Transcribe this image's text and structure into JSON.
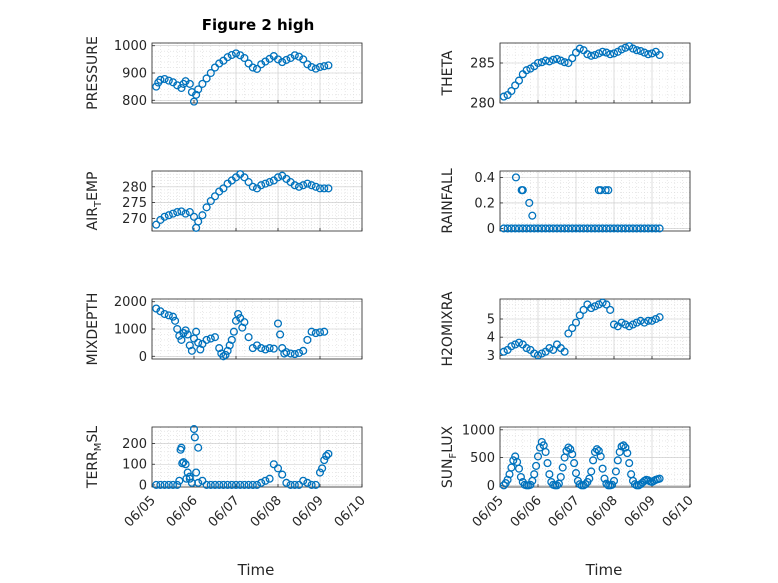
{
  "figure": {
    "title": "Figure 2 high",
    "marker_color": "#0072BD",
    "xlabel": "Time"
  },
  "chart_data": [
    {
      "type": "scatter",
      "ylabel": "PRESSURE",
      "ylabel_sub": "",
      "xlim": [
        5,
        10
      ],
      "xticks": [
        "06/05",
        "06/06",
        "06/07",
        "06/08",
        "06/09",
        "06/10"
      ],
      "show_xticks": false,
      "ylim": [
        790,
        1010
      ],
      "yticks": [
        800,
        900,
        1000
      ],
      "grid": true,
      "x": [
        5.1,
        5.15,
        5.2,
        5.3,
        5.4,
        5.5,
        5.6,
        5.7,
        5.75,
        5.8,
        5.9,
        5.95,
        6.0,
        6.05,
        6.1,
        6.2,
        6.3,
        6.4,
        6.5,
        6.6,
        6.7,
        6.8,
        6.9,
        7.0,
        7.1,
        7.2,
        7.3,
        7.4,
        7.5,
        7.6,
        7.7,
        7.8,
        7.9,
        8.0,
        8.1,
        8.2,
        8.3,
        8.4,
        8.5,
        8.6,
        8.7,
        8.8,
        8.9,
        9.0,
        9.1,
        9.2
      ],
      "y": [
        850,
        865,
        875,
        878,
        872,
        866,
        855,
        845,
        860,
        870,
        860,
        830,
        795,
        820,
        840,
        860,
        880,
        900,
        920,
        935,
        945,
        958,
        966,
        972,
        965,
        955,
        935,
        920,
        915,
        932,
        942,
        952,
        962,
        950,
        940,
        948,
        955,
        965,
        960,
        950,
        932,
        922,
        916,
        922,
        925,
        928
      ]
    },
    {
      "type": "scatter",
      "ylabel": "THETA",
      "ylabel_sub": "",
      "xlim": [
        5,
        10
      ],
      "xticks": [
        "06/05",
        "06/06",
        "06/07",
        "06/08",
        "06/09",
        "06/10"
      ],
      "show_xticks": false,
      "ylim": [
        280,
        287.5
      ],
      "yticks": [
        280,
        285
      ],
      "grid": true,
      "x": [
        5.1,
        5.2,
        5.3,
        5.4,
        5.5,
        5.6,
        5.7,
        5.8,
        5.9,
        6.0,
        6.1,
        6.2,
        6.3,
        6.4,
        6.5,
        6.6,
        6.7,
        6.8,
        6.9,
        7.0,
        7.1,
        7.2,
        7.3,
        7.4,
        7.5,
        7.6,
        7.7,
        7.8,
        7.9,
        8.0,
        8.1,
        8.2,
        8.3,
        8.4,
        8.5,
        8.6,
        8.7,
        8.8,
        8.9,
        9.0,
        9.1,
        9.2
      ],
      "y": [
        280.8,
        281.0,
        281.5,
        282.2,
        282.8,
        283.6,
        284.1,
        284.3,
        284.6,
        285.0,
        285.1,
        285.3,
        285.2,
        285.4,
        285.5,
        285.3,
        285.1,
        285.0,
        285.6,
        286.3,
        286.8,
        286.6,
        286.1,
        285.9,
        286.0,
        286.2,
        286.4,
        286.3,
        286.1,
        286.2,
        286.4,
        286.7,
        286.9,
        287.1,
        286.8,
        286.6,
        286.5,
        286.3,
        286.1,
        286.2,
        286.4,
        286.0
      ]
    },
    {
      "type": "scatter",
      "ylabel": "AIR",
      "ylabel_sub": "T",
      "ylabel_tail": "EMP",
      "xlim": [
        5,
        10
      ],
      "xticks": [
        "06/05",
        "06/06",
        "06/07",
        "06/08",
        "06/09",
        "06/10"
      ],
      "show_xticks": false,
      "ylim": [
        266,
        285
      ],
      "yticks": [
        270,
        275,
        280
      ],
      "grid": true,
      "x": [
        5.1,
        5.2,
        5.3,
        5.4,
        5.5,
        5.6,
        5.7,
        5.8,
        5.9,
        6.0,
        6.05,
        6.1,
        6.2,
        6.3,
        6.4,
        6.5,
        6.6,
        6.7,
        6.8,
        6.9,
        7.0,
        7.1,
        7.2,
        7.3,
        7.4,
        7.5,
        7.6,
        7.7,
        7.8,
        7.9,
        8.0,
        8.1,
        8.2,
        8.3,
        8.4,
        8.5,
        8.6,
        8.7,
        8.8,
        8.9,
        9.0,
        9.1,
        9.2
      ],
      "y": [
        268,
        269.5,
        270.5,
        271,
        271.5,
        272,
        272.2,
        271.5,
        272,
        270.5,
        267,
        269,
        271,
        273.5,
        275.5,
        277,
        278.5,
        279.5,
        281,
        282,
        283,
        284,
        283,
        281.5,
        280,
        279.5,
        280.5,
        281,
        281.5,
        282,
        283,
        283.5,
        282.5,
        281.5,
        280.5,
        280,
        280.5,
        281,
        280.5,
        280,
        279.5,
        279.5,
        279.5
      ]
    },
    {
      "type": "scatter",
      "ylabel": "RAINFALL",
      "ylabel_sub": "",
      "xlim": [
        5,
        10
      ],
      "xticks": [
        "06/05",
        "06/06",
        "06/07",
        "06/08",
        "06/09",
        "06/10"
      ],
      "show_xticks": false,
      "ylim": [
        -0.02,
        0.45
      ],
      "yticks": [
        0,
        0.2,
        0.4
      ],
      "grid": true,
      "x": [
        5.1,
        5.2,
        5.3,
        5.4,
        5.5,
        5.6,
        5.7,
        5.8,
        5.9,
        6.0,
        6.1,
        6.2,
        6.3,
        6.4,
        6.5,
        6.6,
        6.7,
        6.8,
        6.9,
        7.0,
        7.1,
        7.2,
        7.3,
        7.4,
        7.5,
        7.6,
        7.7,
        7.8,
        7.9,
        8.0,
        8.1,
        8.2,
        8.3,
        8.4,
        8.5,
        8.6,
        8.7,
        8.8,
        8.9,
        9.0,
        9.1,
        9.2,
        5.42,
        5.57,
        5.6,
        5.77,
        5.85,
        7.6,
        7.65,
        7.78,
        7.85
      ],
      "y": [
        0,
        0,
        0,
        0,
        0,
        0,
        0,
        0,
        0,
        0,
        0,
        0,
        0,
        0,
        0,
        0,
        0,
        0,
        0,
        0,
        0,
        0,
        0,
        0,
        0,
        0,
        0,
        0,
        0,
        0,
        0,
        0,
        0,
        0,
        0,
        0,
        0,
        0,
        0,
        0,
        0,
        0,
        0.4,
        0.3,
        0.3,
        0.2,
        0.1,
        0.3,
        0.3,
        0.3,
        0.3
      ]
    },
    {
      "type": "scatter",
      "ylabel": "MIXDEPTH",
      "ylabel_sub": "",
      "xlim": [
        5,
        10
      ],
      "xticks": [
        "06/05",
        "06/06",
        "06/07",
        "06/08",
        "06/09",
        "06/10"
      ],
      "show_xticks": false,
      "ylim": [
        -100,
        2100
      ],
      "yticks": [
        0,
        1000,
        2000
      ],
      "grid": true,
      "x": [
        5.1,
        5.2,
        5.3,
        5.4,
        5.5,
        5.55,
        5.6,
        5.65,
        5.7,
        5.75,
        5.8,
        5.85,
        5.9,
        5.95,
        6.0,
        6.05,
        6.1,
        6.15,
        6.2,
        6.3,
        6.4,
        6.5,
        6.6,
        6.65,
        6.7,
        6.75,
        6.8,
        6.85,
        6.9,
        6.95,
        7.0,
        7.05,
        7.1,
        7.15,
        7.2,
        7.3,
        7.4,
        7.5,
        7.6,
        7.7,
        7.8,
        7.9,
        8.0,
        8.05,
        8.1,
        8.15,
        8.2,
        8.3,
        8.4,
        8.5,
        8.6,
        8.7,
        8.8,
        8.9,
        9.0,
        9.1
      ],
      "y": [
        1750,
        1650,
        1550,
        1500,
        1450,
        1300,
        1000,
        750,
        600,
        850,
        950,
        800,
        400,
        200,
        650,
        900,
        500,
        250,
        450,
        600,
        650,
        700,
        300,
        100,
        0,
        50,
        200,
        400,
        600,
        900,
        1300,
        1550,
        1400,
        1050,
        1250,
        700,
        300,
        400,
        300,
        250,
        300,
        280,
        1200,
        800,
        300,
        100,
        150,
        100,
        80,
        120,
        200,
        600,
        900,
        850,
        880,
        900
      ]
    },
    {
      "type": "scatter",
      "ylabel": "H2OMIXRA",
      "ylabel_sub": "",
      "xlim": [
        5,
        10
      ],
      "xticks": [
        "06/05",
        "06/06",
        "06/07",
        "06/08",
        "06/09",
        "06/10"
      ],
      "show_xticks": false,
      "ylim": [
        2.8,
        6.1
      ],
      "yticks": [
        3,
        4,
        5
      ],
      "grid": true,
      "x": [
        5.1,
        5.2,
        5.3,
        5.4,
        5.5,
        5.6,
        5.7,
        5.8,
        5.9,
        6.0,
        6.1,
        6.2,
        6.3,
        6.4,
        6.5,
        6.6,
        6.7,
        6.8,
        6.9,
        7.0,
        7.1,
        7.2,
        7.3,
        7.4,
        7.5,
        7.6,
        7.7,
        7.8,
        7.9,
        8.0,
        8.1,
        8.2,
        8.3,
        8.4,
        8.5,
        8.6,
        8.7,
        8.8,
        8.9,
        9.0,
        9.1,
        9.2
      ],
      "y": [
        3.2,
        3.3,
        3.5,
        3.6,
        3.7,
        3.6,
        3.4,
        3.3,
        3.1,
        3.0,
        3.1,
        3.2,
        3.4,
        3.3,
        3.6,
        3.4,
        3.2,
        4.2,
        4.5,
        4.8,
        5.2,
        5.5,
        5.8,
        5.6,
        5.7,
        5.8,
        5.9,
        5.8,
        5.5,
        4.7,
        4.6,
        4.8,
        4.7,
        4.6,
        4.7,
        4.8,
        4.9,
        4.8,
        4.9,
        4.9,
        5.0,
        5.1
      ]
    },
    {
      "type": "scatter",
      "ylabel": "TERR",
      "ylabel_sub": "M",
      "ylabel_tail": "SL",
      "xlim": [
        5,
        10
      ],
      "xticks": [
        "06/05",
        "06/06",
        "06/07",
        "06/08",
        "06/09",
        "06/10"
      ],
      "show_xticks": true,
      "ylim": [
        -10,
        280
      ],
      "yticks": [
        0,
        100,
        200
      ],
      "grid": true,
      "x": [
        5.1,
        5.2,
        5.3,
        5.4,
        5.5,
        5.6,
        5.65,
        5.7,
        5.75,
        5.8,
        5.85,
        5.9,
        5.95,
        6.0,
        6.05,
        6.1,
        6.2,
        6.3,
        6.4,
        6.5,
        6.6,
        6.7,
        6.8,
        6.9,
        7.0,
        7.1,
        7.2,
        7.3,
        7.4,
        7.5,
        7.6,
        7.7,
        7.8,
        7.9,
        8.0,
        8.1,
        8.2,
        8.3,
        8.4,
        8.5,
        8.6,
        8.7,
        8.8,
        8.9,
        9.0,
        9.05,
        9.1,
        9.15,
        9.2,
        5.68,
        5.72,
        6.02,
        6.1,
        5.82,
        5.9
      ],
      "y": [
        0,
        0,
        0,
        0,
        0,
        0,
        20,
        180,
        110,
        100,
        60,
        30,
        10,
        270,
        60,
        180,
        20,
        0,
        0,
        0,
        0,
        0,
        0,
        0,
        0,
        0,
        0,
        0,
        0,
        0,
        10,
        20,
        30,
        100,
        80,
        50,
        10,
        0,
        0,
        0,
        20,
        10,
        0,
        0,
        60,
        80,
        120,
        140,
        150,
        170,
        105,
        230,
        10,
        30,
        40
      ]
    },
    {
      "type": "scatter",
      "ylabel": "SUN",
      "ylabel_sub": "F",
      "ylabel_tail": "LUX",
      "xlim": [
        5,
        10
      ],
      "xticks": [
        "06/05",
        "06/06",
        "06/07",
        "06/08",
        "06/09",
        "06/10"
      ],
      "show_xticks": true,
      "ylim": [
        -30,
        1050
      ],
      "yticks": [
        0,
        500,
        1000
      ],
      "grid": true,
      "x": [
        5.1,
        5.15,
        5.2,
        5.25,
        5.3,
        5.35,
        5.4,
        5.45,
        5.5,
        5.55,
        5.6,
        5.65,
        5.7,
        5.75,
        5.8,
        5.85,
        5.9,
        5.95,
        6.0,
        6.05,
        6.1,
        6.15,
        6.2,
        6.25,
        6.3,
        6.35,
        6.4,
        6.45,
        6.5,
        6.55,
        6.6,
        6.65,
        6.7,
        6.75,
        6.8,
        6.85,
        6.9,
        6.95,
        7.0,
        7.05,
        7.1,
        7.15,
        7.2,
        7.25,
        7.3,
        7.35,
        7.4,
        7.45,
        7.5,
        7.55,
        7.6,
        7.65,
        7.7,
        7.75,
        7.8,
        7.85,
        7.9,
        7.95,
        8.0,
        8.05,
        8.1,
        8.15,
        8.2,
        8.25,
        8.3,
        8.35,
        8.4,
        8.45,
        8.5,
        8.55,
        8.6,
        8.65,
        8.7,
        8.75,
        8.8,
        8.85,
        8.9,
        8.95,
        9.0,
        9.05,
        9.1,
        9.15,
        9.2
      ],
      "y": [
        0,
        40,
        100,
        200,
        320,
        450,
        520,
        420,
        300,
        150,
        60,
        10,
        0,
        0,
        10,
        80,
        200,
        350,
        520,
        680,
        780,
        720,
        600,
        400,
        200,
        60,
        10,
        0,
        0,
        30,
        150,
        320,
        500,
        620,
        680,
        650,
        560,
        400,
        220,
        80,
        20,
        0,
        0,
        20,
        60,
        120,
        250,
        450,
        600,
        650,
        620,
        520,
        300,
        120,
        30,
        0,
        0,
        10,
        80,
        250,
        450,
        600,
        700,
        720,
        680,
        580,
        400,
        200,
        80,
        20,
        0,
        0,
        20,
        50,
        80,
        100,
        90,
        70,
        60,
        80,
        100,
        110,
        120
      ]
    }
  ]
}
